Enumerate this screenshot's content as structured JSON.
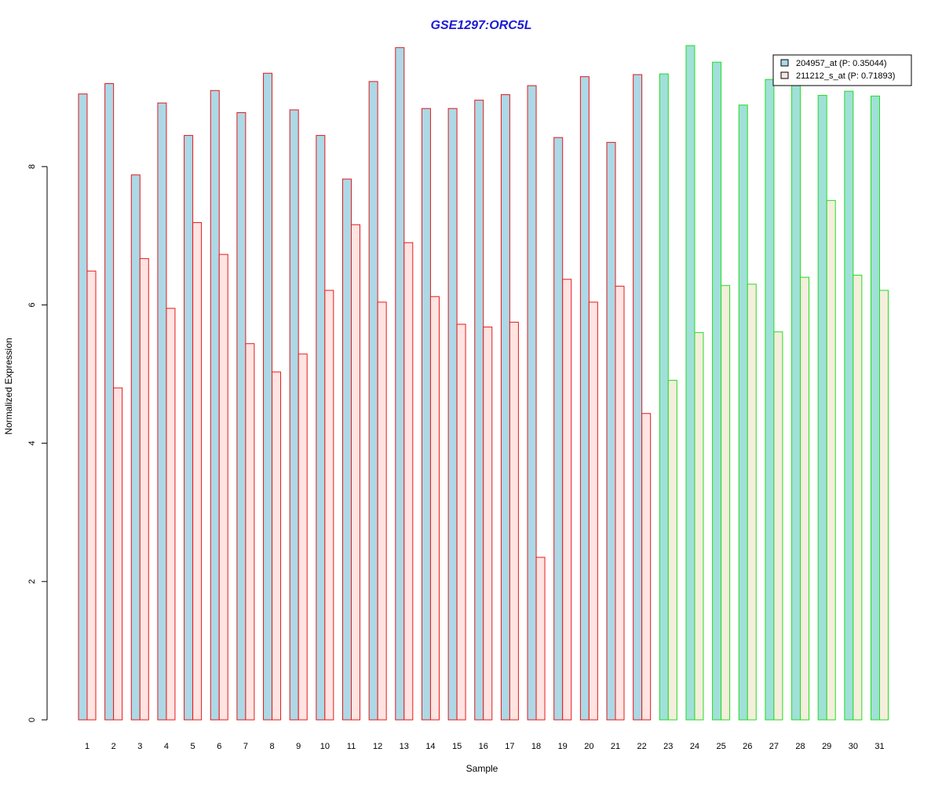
{
  "chart_data": {
    "type": "bar",
    "title": "GSE1297:ORC5L",
    "xlabel": "Sample",
    "ylabel": "Normalized Expression",
    "ylim": [
      0,
      9.8
    ],
    "yticks": [
      0,
      2,
      4,
      6,
      8
    ],
    "categories": [
      "1",
      "2",
      "3",
      "4",
      "5",
      "6",
      "7",
      "8",
      "9",
      "10",
      "11",
      "12",
      "13",
      "14",
      "15",
      "16",
      "17",
      "18",
      "19",
      "20",
      "21",
      "22",
      "23",
      "24",
      "25",
      "26",
      "27",
      "28",
      "29",
      "30",
      "31"
    ],
    "group_outline_colors": {
      "samples_1_22": "#e41a1c",
      "samples_23_31": "#22dd22"
    },
    "series": [
      {
        "name": "204957_at (P: 0.35044)",
        "fill_color": "#add8e6",
        "fill_color_group2": "#a0e0d8",
        "values": [
          9.05,
          9.2,
          7.88,
          8.92,
          8.45,
          9.1,
          8.78,
          9.35,
          8.82,
          8.45,
          7.82,
          9.23,
          9.72,
          8.84,
          8.84,
          8.96,
          9.04,
          9.17,
          8.42,
          9.3,
          8.35,
          9.33,
          9.34,
          9.75,
          9.51,
          8.89,
          9.26,
          9.2,
          9.03,
          9.09,
          9.02
        ]
      },
      {
        "name": "211212_s_at (P: 0.71893)",
        "fill_color": "#ffe4e1",
        "fill_color_group2": "#f5eedc",
        "values": [
          6.49,
          4.8,
          6.67,
          5.95,
          7.19,
          6.73,
          5.44,
          5.03,
          5.29,
          6.21,
          7.16,
          6.04,
          6.9,
          6.12,
          5.72,
          5.68,
          5.75,
          2.35,
          6.37,
          6.04,
          6.27,
          4.43,
          4.91,
          5.6,
          6.28,
          6.3,
          5.61,
          6.4,
          7.51,
          6.43,
          6.21
        ]
      }
    ],
    "legend_position": "top-right"
  }
}
